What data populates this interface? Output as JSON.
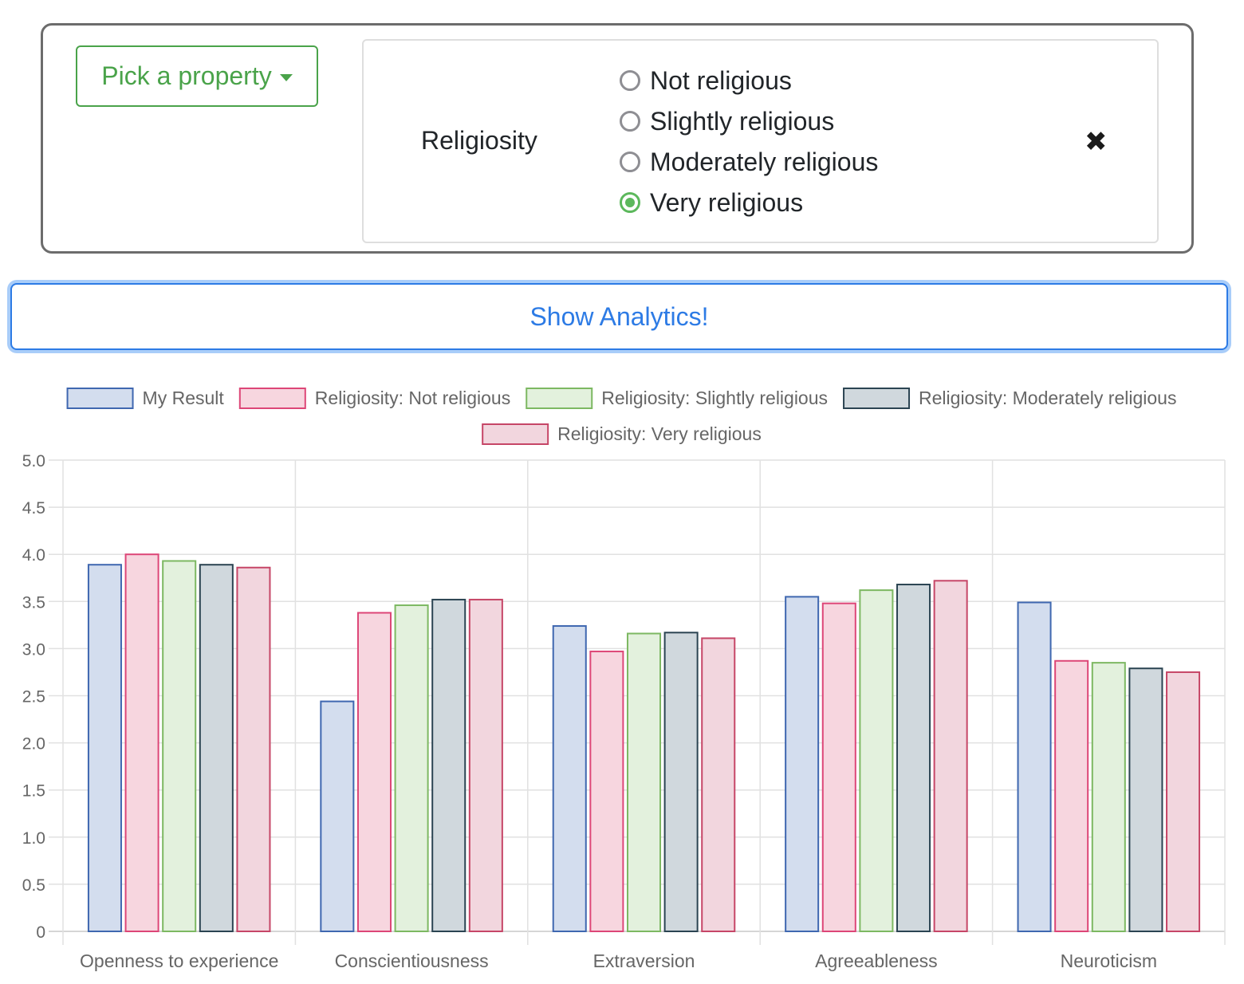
{
  "filter": {
    "pick_label": "Pick a property",
    "property_name": "Religiosity",
    "options": [
      {
        "label": "Not religious",
        "selected": false
      },
      {
        "label": "Slightly religious",
        "selected": false
      },
      {
        "label": "Moderately religious",
        "selected": false
      },
      {
        "label": "Very religious",
        "selected": true
      }
    ],
    "remove_icon": "heavy-multiplication-x"
  },
  "analytics_button": {
    "label": "Show Analytics!"
  },
  "colors": {
    "accent_green": "#4aa34a",
    "accent_blue": "#2d7be5"
  },
  "chart_data": {
    "type": "bar",
    "categories": [
      "Openness to experience",
      "Conscientiousness",
      "Extraversion",
      "Agreeableness",
      "Neuroticism"
    ],
    "series": [
      {
        "name": "My Result",
        "values": [
          3.89,
          2.44,
          3.24,
          3.55,
          3.49
        ],
        "fill": "#d3ddee",
        "stroke": "#3f67b0"
      },
      {
        "name": "Religiosity: Not religious",
        "values": [
          4.0,
          3.38,
          2.97,
          3.48,
          2.87
        ],
        "fill": "#f7d6df",
        "stroke": "#dd4677"
      },
      {
        "name": "Religiosity: Slightly religious",
        "values": [
          3.93,
          3.46,
          3.16,
          3.62,
          2.85
        ],
        "fill": "#e3f1dd",
        "stroke": "#7db862"
      },
      {
        "name": "Religiosity: Moderately religious",
        "values": [
          3.89,
          3.52,
          3.17,
          3.68,
          2.79
        ],
        "fill": "#d0d8dd",
        "stroke": "#2b4452"
      },
      {
        "name": "Religiosity: Very religious",
        "values": [
          3.86,
          3.52,
          3.11,
          3.72,
          2.75
        ],
        "fill": "#f2d6de",
        "stroke": "#c64667"
      }
    ],
    "y_ticks": [
      "0",
      "0.5",
      "1.0",
      "1.5",
      "2.0",
      "2.5",
      "3.0",
      "3.5",
      "4.0",
      "4.5",
      "5.0"
    ],
    "ylim": [
      0,
      5
    ],
    "legend_position": "top",
    "grid": true
  }
}
